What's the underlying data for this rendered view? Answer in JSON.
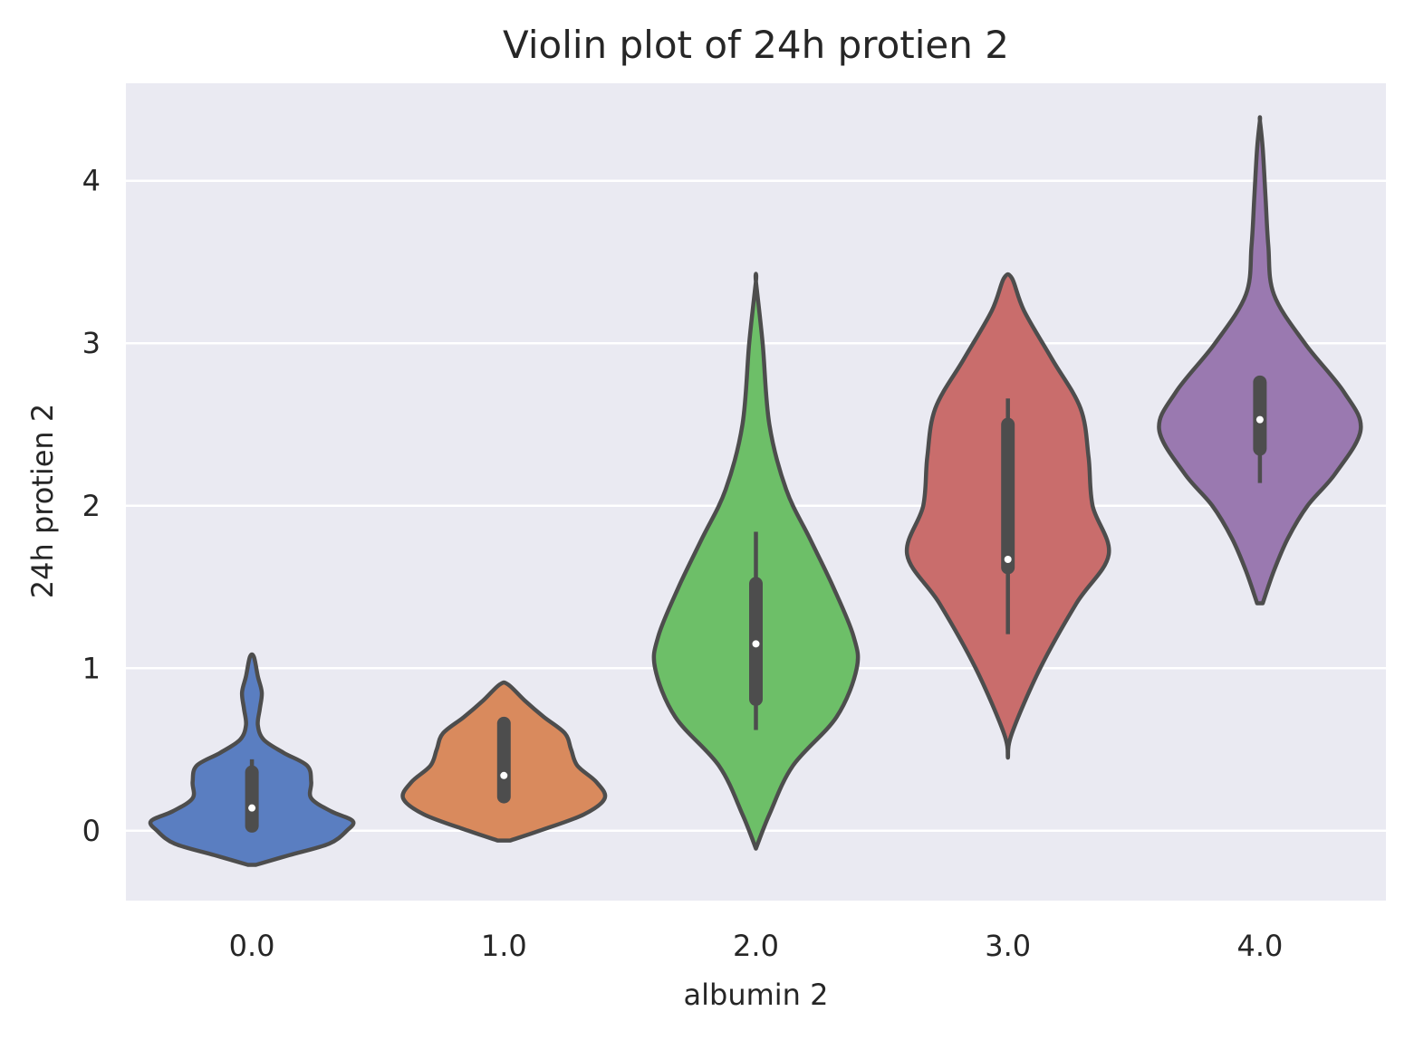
{
  "chart_data": {
    "type": "violin",
    "title": "Violin plot of 24h protien 2",
    "xlabel": "albumin 2",
    "ylabel": "24h protien 2",
    "categories": [
      "0.0",
      "1.0",
      "2.0",
      "3.0",
      "4.0"
    ],
    "ylim": [
      -0.43,
      4.6
    ],
    "yticks": [
      0,
      1,
      2,
      3,
      4
    ],
    "grid": true,
    "colors": {
      "background": "#eaeaf2",
      "grid": "#ffffff",
      "outline": "#4d4d4d",
      "box": "#4d4d4d",
      "median_dot": "#ffffff"
    },
    "series": [
      {
        "category": "0.0",
        "color": "#5a7ec1",
        "min": 0.0,
        "q1": 0.03,
        "median": 0.14,
        "q3": 0.36,
        "max": 0.44,
        "density": [
          [
            -0.21,
            0.02
          ],
          [
            -0.15,
            0.19
          ],
          [
            -0.08,
            0.39
          ],
          [
            0.0,
            0.48
          ],
          [
            0.06,
            0.51
          ],
          [
            0.12,
            0.4
          ],
          [
            0.2,
            0.3
          ],
          [
            0.3,
            0.3
          ],
          [
            0.4,
            0.28
          ],
          [
            0.48,
            0.16
          ],
          [
            0.56,
            0.06
          ],
          [
            0.65,
            0.03
          ],
          [
            0.75,
            0.04
          ],
          [
            0.85,
            0.05
          ],
          [
            0.95,
            0.03
          ],
          [
            1.07,
            0.01
          ]
        ]
      },
      {
        "category": "1.0",
        "color": "#d98a5d",
        "min": 0.2,
        "q1": 0.21,
        "median": 0.34,
        "q3": 0.66,
        "max": 0.66,
        "density": [
          [
            -0.06,
            0.03
          ],
          [
            0.0,
            0.17
          ],
          [
            0.1,
            0.38
          ],
          [
            0.2,
            0.48
          ],
          [
            0.3,
            0.44
          ],
          [
            0.4,
            0.35
          ],
          [
            0.5,
            0.32
          ],
          [
            0.6,
            0.29
          ],
          [
            0.7,
            0.19
          ],
          [
            0.8,
            0.1
          ],
          [
            0.9,
            0.02
          ]
        ]
      },
      {
        "category": "2.0",
        "color": "#6dbf68",
        "min": 0.62,
        "q1": 0.81,
        "median": 1.15,
        "q3": 1.52,
        "max": 1.84,
        "density": [
          [
            -0.11,
            0.0
          ],
          [
            0.1,
            0.04
          ],
          [
            0.4,
            0.11
          ],
          [
            0.7,
            0.24
          ],
          [
            1.0,
            0.3
          ],
          [
            1.2,
            0.29
          ],
          [
            1.5,
            0.23
          ],
          [
            1.8,
            0.16
          ],
          [
            2.1,
            0.09
          ],
          [
            2.5,
            0.04
          ],
          [
            3.0,
            0.02
          ],
          [
            3.38,
            0.0
          ]
        ]
      },
      {
        "category": "3.0",
        "color": "#c96d6c",
        "min": 1.21,
        "q1": 1.62,
        "median": 1.67,
        "q3": 2.5,
        "max": 2.66,
        "density": [
          [
            0.45,
            0.0
          ],
          [
            0.6,
            0.01
          ],
          [
            1.0,
            0.08
          ],
          [
            1.4,
            0.17
          ],
          [
            1.7,
            0.25
          ],
          [
            2.0,
            0.21
          ],
          [
            2.3,
            0.2
          ],
          [
            2.6,
            0.18
          ],
          [
            2.9,
            0.11
          ],
          [
            3.2,
            0.04
          ],
          [
            3.4,
            0.01
          ]
        ]
      },
      {
        "category": "4.0",
        "color": "#9a79b0",
        "min": 2.14,
        "q1": 2.35,
        "median": 2.53,
        "q3": 2.76,
        "max": 2.76,
        "density": [
          [
            1.4,
            0.01
          ],
          [
            1.6,
            0.05
          ],
          [
            1.8,
            0.1
          ],
          [
            2.0,
            0.17
          ],
          [
            2.2,
            0.27
          ],
          [
            2.47,
            0.36
          ],
          [
            2.7,
            0.3
          ],
          [
            3.0,
            0.16
          ],
          [
            3.3,
            0.05
          ],
          [
            3.6,
            0.03
          ],
          [
            3.9,
            0.02
          ],
          [
            4.2,
            0.01
          ],
          [
            4.37,
            0.0
          ]
        ]
      }
    ]
  }
}
